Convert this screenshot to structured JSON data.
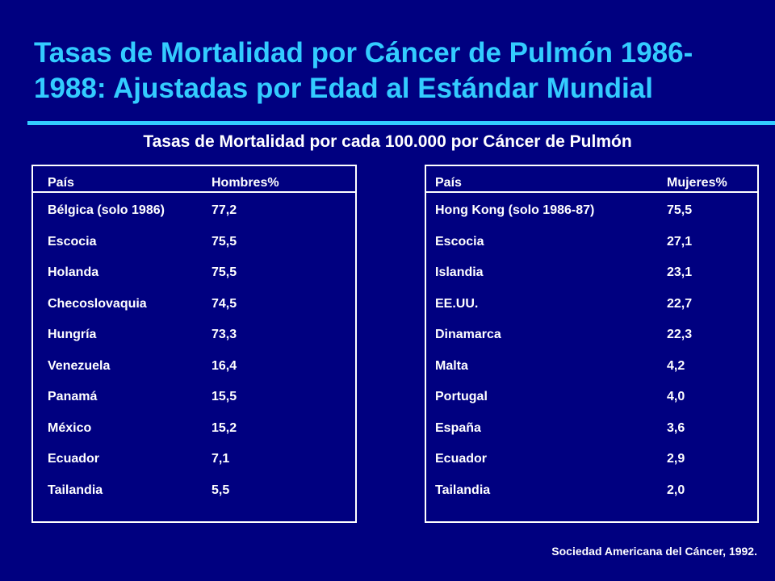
{
  "title": "Tasas de Mortalidad por Cáncer de Pulmón 1986-1988: Ajustadas por Edad al Estándar Mundial",
  "subtitle": "Tasas de Mortalidad por cada 100.000 por Cáncer de Pulmón",
  "colors": {
    "background": "#000080",
    "title": "#33ccff",
    "text": "#ffffff"
  },
  "men_table": {
    "headers": [
      "País",
      "Hombres%"
    ],
    "rows": [
      [
        "Bélgica (solo 1986)",
        "77,2"
      ],
      [
        "Escocia",
        "75,5"
      ],
      [
        "Holanda",
        "75,5"
      ],
      [
        "Checoslovaquia",
        "74,5"
      ],
      [
        "Hungría",
        "73,3"
      ],
      [
        "Venezuela",
        "16,4"
      ],
      [
        "Panamá",
        "15,5"
      ],
      [
        "México",
        "15,2"
      ],
      [
        "Ecuador",
        "7,1"
      ],
      [
        "Tailandia",
        "5,5"
      ]
    ]
  },
  "women_table": {
    "headers": [
      "País",
      "Mujeres%"
    ],
    "rows": [
      [
        "Hong Kong (solo 1986-87)",
        "75,5"
      ],
      [
        "Escocia",
        "27,1"
      ],
      [
        "Islandia",
        "23,1"
      ],
      [
        "EE.UU.",
        "22,7"
      ],
      [
        "Dinamarca",
        "22,3"
      ],
      [
        "Malta",
        "4,2"
      ],
      [
        "Portugal",
        "4,0"
      ],
      [
        "España",
        "3,6"
      ],
      [
        "Ecuador",
        "2,9"
      ],
      [
        "Tailandia",
        "2,0"
      ]
    ]
  },
  "source": "Sociedad Americana del Cáncer, 1992."
}
